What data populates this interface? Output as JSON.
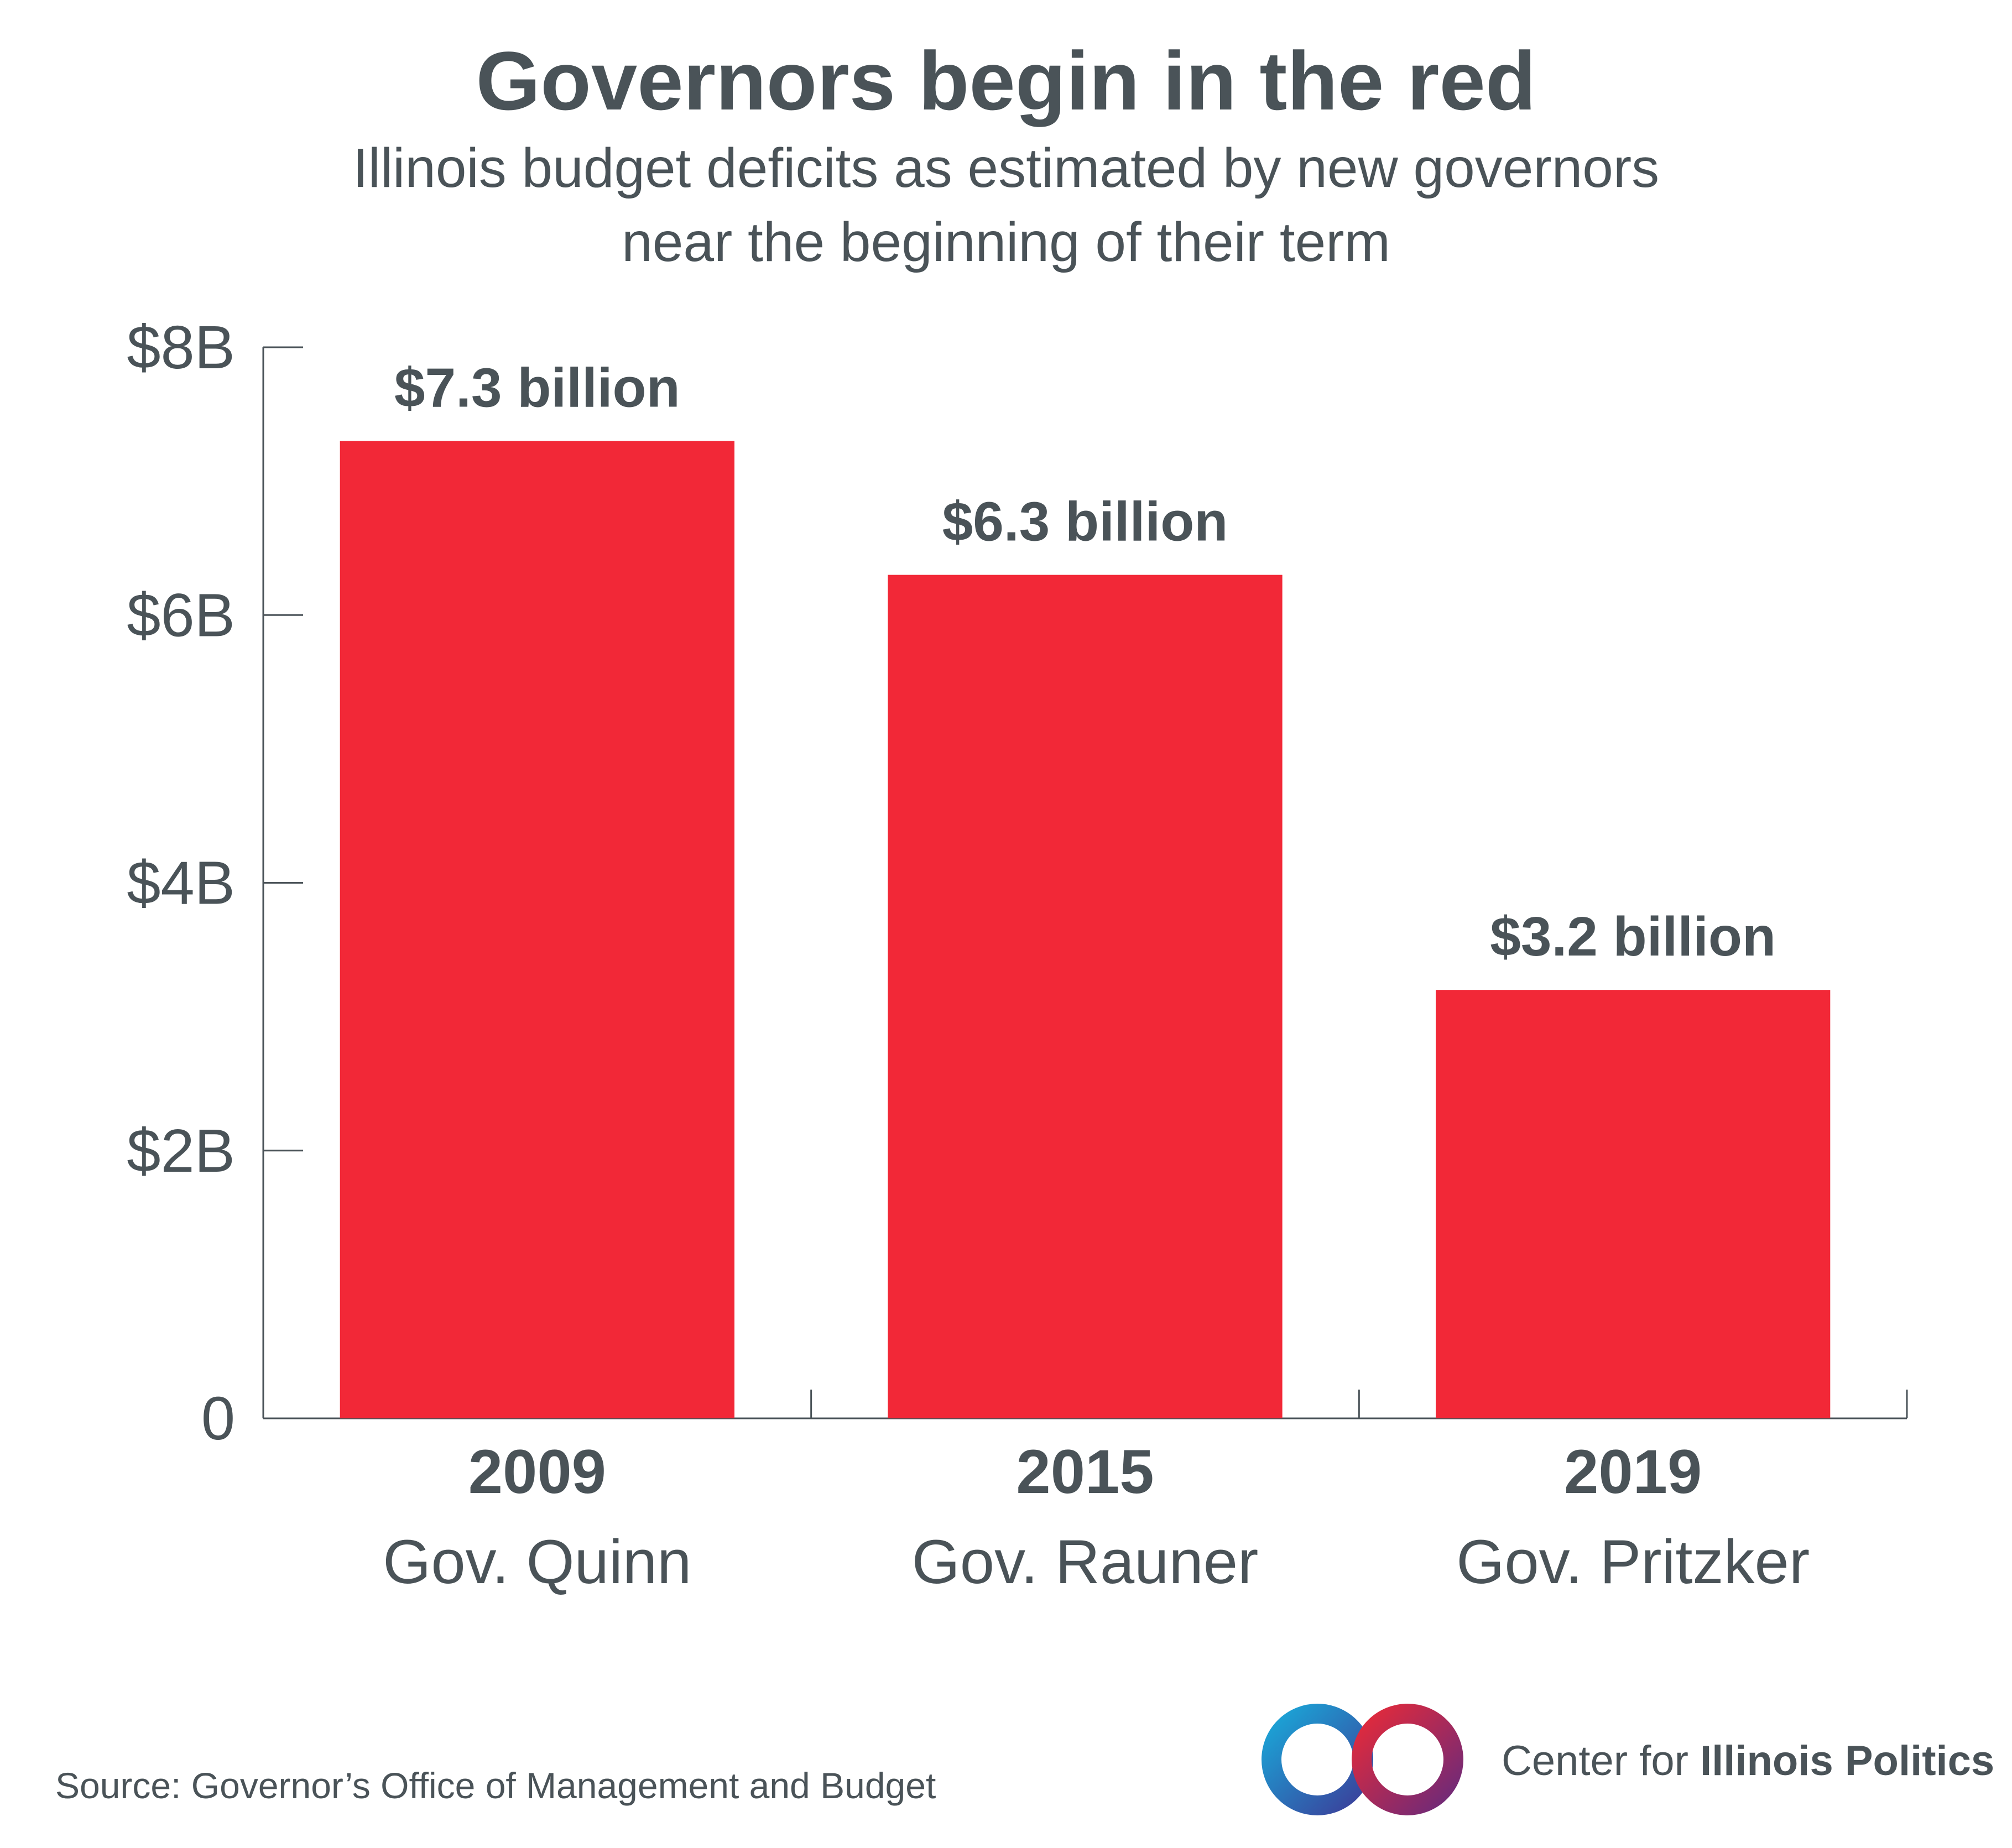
{
  "colors": {
    "bar": "#f22837",
    "text": "#4a5358",
    "axis": "#4a5358",
    "logo_blue": "#1aa7d8",
    "logo_red": "#e52a3a",
    "logo_purple": "#6b2a7a"
  },
  "header": {
    "title": "Governors begin in the red",
    "subtitle_line1": "Illinois budget deficits as estimated by new governors",
    "subtitle_line2": "near the beginning of their term"
  },
  "chart_data": {
    "type": "bar",
    "title": "Governors begin in the red",
    "subtitle": "Illinois budget deficits as estimated by new governors near the beginning of their term",
    "categories": [
      "2009",
      "2015",
      "2019"
    ],
    "category_sublabels": [
      "Gov. Quinn",
      "Gov. Rauner",
      "Gov. Pritzker"
    ],
    "values": [
      7.3,
      6.3,
      3.2
    ],
    "data_labels": [
      "$7.3 billion",
      "$6.3 billion",
      "$3.2 billion"
    ],
    "unit": "billion dollars",
    "ylim": [
      0,
      8
    ],
    "yticks": [
      0,
      2,
      4,
      6,
      8
    ],
    "ytick_labels": [
      "0",
      "$2B",
      "$4B",
      "$6B",
      "$8B"
    ],
    "xlabel": "",
    "ylabel": "",
    "grid": false,
    "legend": "none"
  },
  "footer": {
    "source": "Source: Governor’s Office of Management and Budget",
    "brand_light": "Center for ",
    "brand_bold": "Illinois Politics"
  },
  "icons": {
    "logo": "infinity-logo-icon"
  }
}
